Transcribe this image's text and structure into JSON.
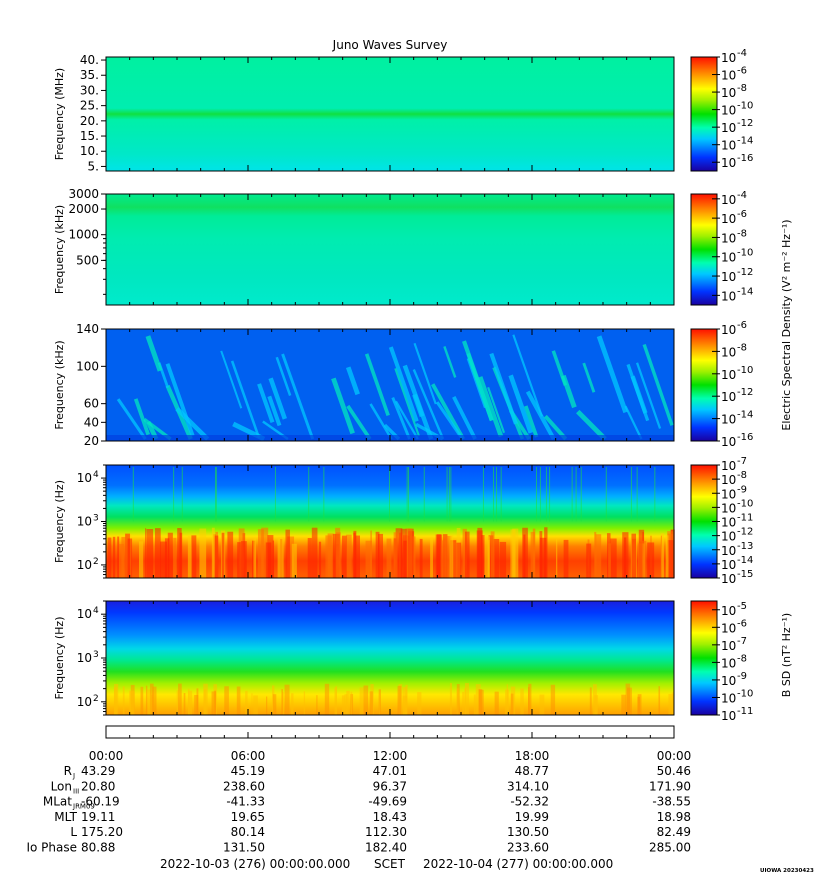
{
  "title": "Juno Waves Survey",
  "footer": {
    "start": "2022-10-03 (276) 00:00:00.000",
    "mid": "SCET",
    "end": "2022-10-04 (277) 00:00:00.000",
    "credit": "UIOWA 20230423"
  },
  "colorbar_labels": {
    "electric": "Electric Spectral Density (V² m⁻² Hz⁻¹)",
    "magnetic": "B SD (nT² Hz⁻¹)"
  },
  "ephemeris": {
    "time_ticks": [
      "00:00",
      "06:00",
      "12:00",
      "18:00",
      "00:00"
    ],
    "rows": [
      {
        "label": "R",
        "sub": "J",
        "values": [
          "43.29",
          "45.19",
          "47.01",
          "48.77",
          "50.46"
        ]
      },
      {
        "label": "Lon",
        "sub": "III",
        "values": [
          "20.80",
          "238.60",
          "96.37",
          "314.10",
          "171.90"
        ]
      },
      {
        "label": "MLat",
        "sub": "JRM09",
        "values": [
          "-60.19",
          "-41.33",
          "-49.69",
          "-52.32",
          "-38.55"
        ]
      },
      {
        "label": "MLT",
        "sub": "",
        "values": [
          "19.11",
          "19.65",
          "18.43",
          "19.99",
          "18.98"
        ]
      },
      {
        "label": "L",
        "sub": "",
        "values": [
          "175.20",
          "80.14",
          "112.30",
          "130.50",
          "82.49"
        ]
      },
      {
        "label": "Io Phase",
        "sub": "",
        "values": [
          "80.88",
          "131.50",
          "182.40",
          "233.60",
          "285.00"
        ]
      }
    ]
  },
  "chart_data": [
    {
      "type": "heatmap",
      "ylabel": "Frequency (MHz)",
      "yscale": "linear",
      "ylim": [
        3.5,
        41
      ],
      "yticks": [
        {
          "v": 5,
          "t": "5."
        },
        {
          "v": 10,
          "t": "10."
        },
        {
          "v": 15,
          "t": "15."
        },
        {
          "v": 20,
          "t": "20."
        },
        {
          "v": 25,
          "t": "25."
        },
        {
          "v": 30,
          "t": "30."
        },
        {
          "v": 35,
          "t": "35."
        },
        {
          "v": 40,
          "t": "40."
        }
      ],
      "colorbar": {
        "min": -17,
        "max": -4,
        "ticks": [
          -16,
          -14,
          -12,
          -10,
          -8,
          -6,
          -4
        ]
      },
      "xlim_hours": [
        0,
        24
      ]
    },
    {
      "type": "heatmap",
      "ylabel": "Frequency (kHz)",
      "yscale": "log",
      "ylim": [
        150,
        3000
      ],
      "yticks": [
        {
          "v": 500,
          "t": "500"
        },
        {
          "v": 1000,
          "t": "1000"
        },
        {
          "v": 2000,
          "t": "2000"
        },
        {
          "v": 3000,
          "t": "3000"
        }
      ],
      "colorbar": {
        "min": -15,
        "max": -3.5,
        "ticks": [
          -14,
          -12,
          -10,
          -8,
          -6,
          -4
        ]
      },
      "xlim_hours": [
        0,
        24
      ]
    },
    {
      "type": "heatmap",
      "ylabel": "Frequency (kHz)",
      "yscale": "linear",
      "ylim": [
        20,
        140
      ],
      "yticks": [
        {
          "v": 20,
          "t": "20"
        },
        {
          "v": 40,
          "t": "40"
        },
        {
          "v": 60,
          "t": "60"
        },
        {
          "v": 100,
          "t": "100"
        },
        {
          "v": 140,
          "t": "140"
        }
      ],
      "colorbar": {
        "min": -16,
        "max": -6,
        "ticks": [
          -16,
          -14,
          -12,
          -10,
          -8,
          -6
        ]
      },
      "xlim_hours": [
        0,
        24
      ]
    },
    {
      "type": "heatmap",
      "ylabel": "Frequency (Hz)",
      "yscale": "log",
      "ylim": [
        50,
        20000
      ],
      "yticks": [
        {
          "v": 100,
          "t": "10",
          "e": "2"
        },
        {
          "v": 1000,
          "t": "10",
          "e": "3"
        },
        {
          "v": 10000,
          "t": "10",
          "e": "4"
        }
      ],
      "colorbar": {
        "min": -15,
        "max": -7,
        "ticks": [
          -15,
          -14,
          -13,
          -12,
          -11,
          -10,
          -9,
          -8,
          -7
        ]
      },
      "xlim_hours": [
        0,
        24
      ]
    },
    {
      "type": "heatmap",
      "ylabel": "Frequency (Hz)",
      "yscale": "log",
      "ylim": [
        50,
        20000
      ],
      "yticks": [
        {
          "v": 100,
          "t": "10",
          "e": "2"
        },
        {
          "v": 1000,
          "t": "10",
          "e": "3"
        },
        {
          "v": 10000,
          "t": "10",
          "e": "4"
        }
      ],
      "colorbar": {
        "min": -11,
        "max": -4.5,
        "ticks": [
          -11,
          -10,
          -9,
          -8,
          -7,
          -6,
          -5
        ]
      },
      "xlim_hours": [
        0,
        24
      ]
    }
  ]
}
